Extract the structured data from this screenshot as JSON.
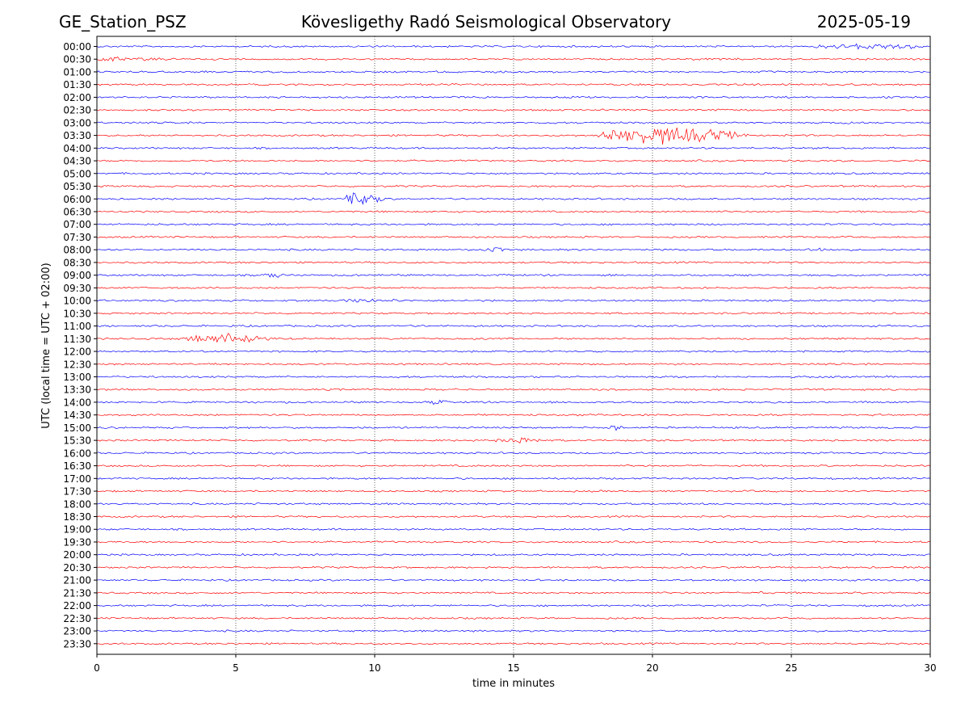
{
  "header": {
    "station": "GE_Station_PSZ",
    "observatory": "Kövesligethy Radó Seismological Observatory",
    "date": "2025-05-19"
  },
  "chart_data": {
    "type": "line",
    "subtype": "helicorder",
    "xlabel": "time in minutes",
    "ylabel": "UTC (local time = UTC + 02:00)",
    "xlim": [
      0,
      30
    ],
    "xticks": [
      0,
      5,
      10,
      15,
      20,
      25,
      30
    ],
    "grid": "vertical dotted lines at x = 5, 10, 15, 20, 25",
    "trace_colors": [
      "#0000ff",
      "#ff0000"
    ],
    "rows": [
      "00:00",
      "00:30",
      "01:00",
      "01:30",
      "02:00",
      "02:30",
      "03:00",
      "03:30",
      "04:00",
      "04:30",
      "05:00",
      "05:30",
      "06:00",
      "06:30",
      "07:00",
      "07:30",
      "08:00",
      "08:30",
      "09:00",
      "09:30",
      "10:00",
      "10:30",
      "11:00",
      "11:30",
      "12:00",
      "12:30",
      "13:00",
      "13:30",
      "14:00",
      "14:30",
      "15:00",
      "15:30",
      "16:00",
      "16:30",
      "17:00",
      "17:30",
      "18:00",
      "18:30",
      "19:00",
      "19:30",
      "20:00",
      "20:30",
      "21:00",
      "21:30",
      "22:00",
      "22:30",
      "23:00",
      "23:30"
    ],
    "events": [
      {
        "row": "00:00",
        "start": 25.8,
        "end": 30.0,
        "amplitude": 0.35
      },
      {
        "row": "00:30",
        "start": 0.0,
        "end": 1.2,
        "amplitude": 0.3
      },
      {
        "row": "00:30",
        "start": 1.2,
        "end": 2.6,
        "amplitude": 0.12
      },
      {
        "row": "03:00",
        "start": 26.8,
        "end": 27.2,
        "amplitude": 0.15
      },
      {
        "row": "03:30",
        "start": 18.0,
        "end": 23.5,
        "amplitude": 1.0,
        "peak": 19.8
      },
      {
        "row": "06:00",
        "start": 8.9,
        "end": 10.5,
        "amplitude": 0.7,
        "peak": 9.1
      },
      {
        "row": "08:00",
        "start": 13.9,
        "end": 15.0,
        "amplitude": 0.22
      },
      {
        "row": "08:00",
        "start": 25.5,
        "end": 26.5,
        "amplitude": 0.22
      },
      {
        "row": "09:00",
        "start": 5.9,
        "end": 6.8,
        "amplitude": 0.32
      },
      {
        "row": "10:00",
        "start": 8.5,
        "end": 11.0,
        "amplitude": 0.15
      },
      {
        "row": "11:30",
        "start": 3.0,
        "end": 6.5,
        "amplitude": 0.5
      },
      {
        "row": "14:00",
        "start": 11.8,
        "end": 12.7,
        "amplitude": 0.25
      },
      {
        "row": "15:00",
        "start": 18.4,
        "end": 19.0,
        "amplitude": 0.35,
        "peak": 18.6
      },
      {
        "row": "15:30",
        "start": 14.3,
        "end": 16.0,
        "amplitude": 0.3
      },
      {
        "row": "21:30",
        "start": 23.8,
        "end": 24.0,
        "amplitude": 0.12
      }
    ]
  }
}
